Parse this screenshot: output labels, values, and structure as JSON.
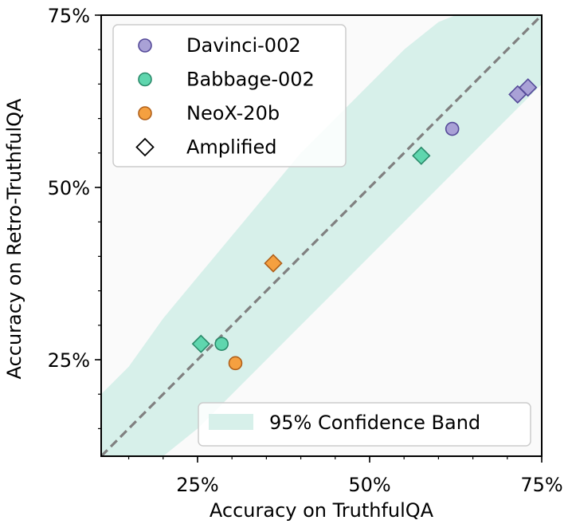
{
  "chart_data": {
    "type": "scatter",
    "xlabel": "Accuracy on TruthfulQA",
    "ylabel": "Accuracy on Retro-TruthfulQA",
    "xlim": [
      0.11,
      0.75
    ],
    "ylim": [
      0.11,
      0.75
    ],
    "x_ticks": [
      0.25,
      0.5,
      0.75
    ],
    "x_tick_labels": [
      "25%",
      "50%",
      "75%"
    ],
    "y_ticks": [
      0.25,
      0.5,
      0.75
    ],
    "y_tick_labels": [
      "25%",
      "50%",
      "75%"
    ],
    "minor_tick_step": 0.05,
    "grid": false,
    "diagonal": {
      "style": "dashed",
      "color": "#808080",
      "from": [
        0.11,
        0.11
      ],
      "to": [
        0.75,
        0.75
      ]
    },
    "confidence_band": {
      "label": "95% Confidence Band",
      "color": "#d7f0ea",
      "x": [
        0.11,
        0.15,
        0.2,
        0.25,
        0.3,
        0.35,
        0.4,
        0.45,
        0.5,
        0.55,
        0.6,
        0.65,
        0.7,
        0.75
      ],
      "upper": [
        0.2,
        0.24,
        0.31,
        0.37,
        0.43,
        0.49,
        0.55,
        0.6,
        0.65,
        0.7,
        0.74,
        0.76,
        0.77,
        0.77
      ],
      "lower": [
        0.02,
        0.06,
        0.11,
        0.15,
        0.2,
        0.25,
        0.3,
        0.35,
        0.4,
        0.45,
        0.5,
        0.55,
        0.6,
        0.65
      ]
    },
    "series": [
      {
        "name": "Davinci-002",
        "color": "#a9a1d6",
        "edge": "#554a99",
        "points": [
          {
            "x": 0.62,
            "y": 0.585,
            "marker": "circle"
          },
          {
            "x": 0.715,
            "y": 0.635,
            "marker": "diamond"
          },
          {
            "x": 0.73,
            "y": 0.645,
            "marker": "diamond"
          }
        ]
      },
      {
        "name": "Babbage-002",
        "color": "#5fd6ae",
        "edge": "#2a8a6a",
        "points": [
          {
            "x": 0.285,
            "y": 0.273,
            "marker": "circle"
          },
          {
            "x": 0.255,
            "y": 0.273,
            "marker": "diamond"
          },
          {
            "x": 0.575,
            "y": 0.546,
            "marker": "diamond"
          }
        ]
      },
      {
        "name": "NeoX-20b",
        "color": "#f5a040",
        "edge": "#b0601a",
        "points": [
          {
            "x": 0.305,
            "y": 0.245,
            "marker": "circle"
          },
          {
            "x": 0.36,
            "y": 0.39,
            "marker": "diamond"
          }
        ]
      }
    ],
    "legend": {
      "placement": "top-left",
      "entries": [
        {
          "label": "Davinci-002",
          "marker": "circle",
          "color": "#a9a1d6",
          "edge": "#554a99"
        },
        {
          "label": "Babbage-002",
          "marker": "circle",
          "color": "#5fd6ae",
          "edge": "#2a8a6a"
        },
        {
          "label": "NeoX-20b",
          "marker": "circle",
          "color": "#f5a040",
          "edge": "#b0601a"
        },
        {
          "label": "Amplified",
          "marker": "diamond",
          "color": "#ffffff",
          "edge": "#000000"
        }
      ],
      "band_legend_placement": "bottom-right"
    }
  }
}
